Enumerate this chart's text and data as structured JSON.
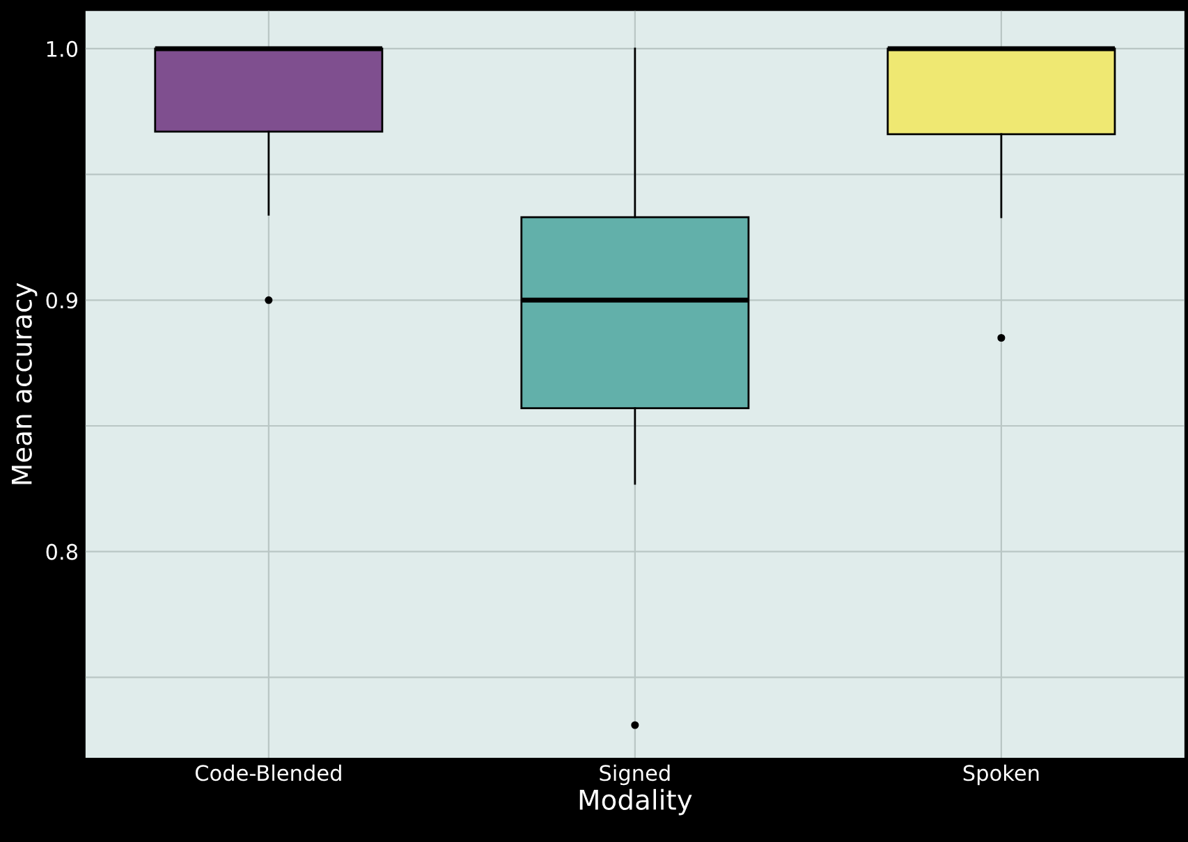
{
  "chart_data": {
    "type": "box",
    "xlabel": "Modality",
    "ylabel": "Mean accuracy",
    "categories": [
      "Code-Blended",
      "Signed",
      "Spoken"
    ],
    "colors": [
      "#7f4f8f",
      "#62b0aa",
      "#efe872"
    ],
    "boxes": [
      {
        "low": 0.934,
        "q1": 0.967,
        "median": 1.0,
        "q3": 1.0,
        "high": 1.0,
        "outliers": [
          0.9
        ]
      },
      {
        "low": 0.827,
        "q1": 0.857,
        "median": 0.9,
        "q3": 0.933,
        "high": 1.0,
        "outliers": [
          0.731
        ]
      },
      {
        "low": 0.933,
        "q1": 0.966,
        "median": 1.0,
        "q3": 1.0,
        "high": 1.0,
        "outliers": [
          0.885
        ]
      }
    ],
    "ylim": [
      0.718,
      1.015
    ],
    "yticks": [
      {
        "value": 0.75,
        "label": null
      },
      0.8,
      {
        "value": 0.85,
        "label": null
      },
      0.9,
      {
        "value": 0.95,
        "label": null
      },
      {
        "value": 1.0,
        "label": "1.0"
      }
    ],
    "grid": true
  }
}
